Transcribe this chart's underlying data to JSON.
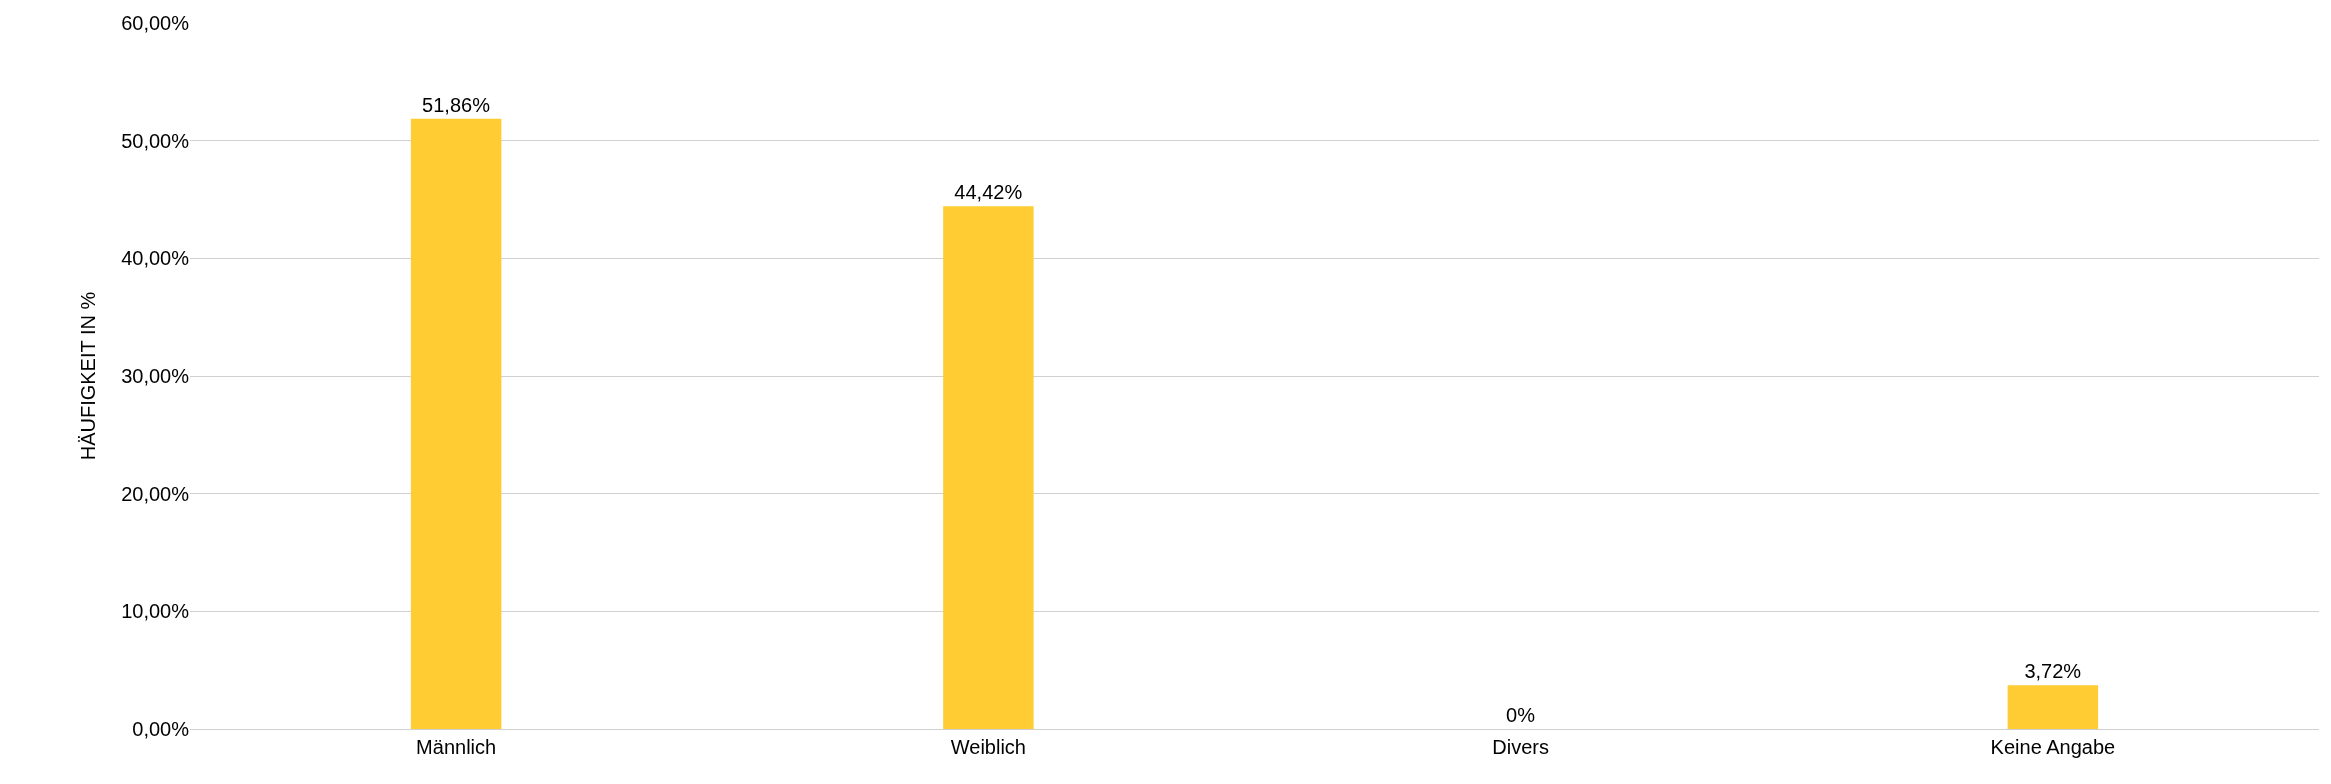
{
  "chart_data": {
    "type": "bar",
    "ylabel": "HÄUFIGKEIT IN %",
    "categories": [
      "Männlich",
      "Weiblich",
      "Divers",
      "Keine Angabe"
    ],
    "values": [
      51.86,
      44.42,
      0,
      3.72
    ],
    "value_labels": [
      "51,86%",
      "44,42%",
      "0%",
      "3,72%"
    ],
    "color": "#ffcd33",
    "ylim": [
      0,
      60
    ],
    "yticks": [
      {
        "value": 0,
        "label": "0,00%"
      },
      {
        "value": 10,
        "label": "10,00%"
      },
      {
        "value": 20,
        "label": "20,00%"
      },
      {
        "value": 30,
        "label": "30,00%"
      },
      {
        "value": 40,
        "label": "40,00%"
      },
      {
        "value": 50,
        "label": "50,00%"
      },
      {
        "value": 60,
        "label": "60,00%"
      }
    ],
    "grid": "y"
  }
}
